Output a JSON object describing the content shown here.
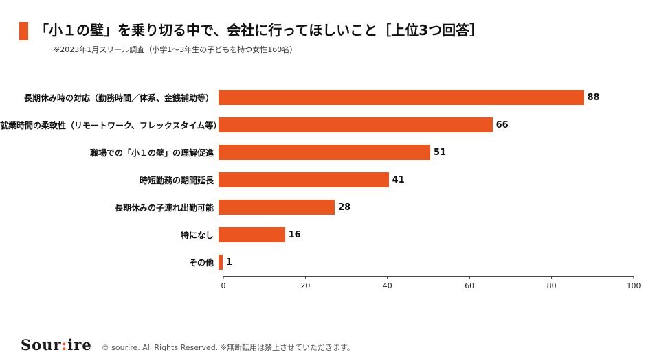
{
  "accent_color": "#EA5520",
  "header": {
    "title": "「小１の壁」を乗り切る中で、会社に行ってほしいこと［上位3つ回答］",
    "subtitle": "※2023年1月スリール調査（小学1〜3年生の子どもを持つ女性160名）"
  },
  "chart_data": {
    "type": "bar",
    "orientation": "horizontal",
    "title": "「小１の壁」を乗り切る中で、会社に行ってほしいこと［上位3つ回答］",
    "categories": [
      "長期休み時の対応（勤務時間／体系、金銭補助等）",
      "就業時間の柔軟性（リモートワーク、フレックスタイム等）",
      "職場での「小１の壁」の理解促進",
      "時短勤務の期間延長",
      "長期休みの子連れ出勤可能",
      "特になし",
      "その他"
    ],
    "values": [
      88,
      66,
      51,
      41,
      28,
      16,
      1
    ],
    "xlabel": "",
    "ylabel": "",
    "xlim": [
      0,
      100
    ],
    "xticks": [
      0,
      20,
      40,
      60,
      80,
      100
    ],
    "bar_color": "#EA5520",
    "grid": false,
    "legend": "none",
    "value_labels": true
  },
  "footer": {
    "logo_left": "Sour",
    "logo_dot": ":",
    "logo_right": "ire",
    "copyright": "© sourire. All Rights Reserved. ※無断転用は禁止させていただきます。"
  }
}
